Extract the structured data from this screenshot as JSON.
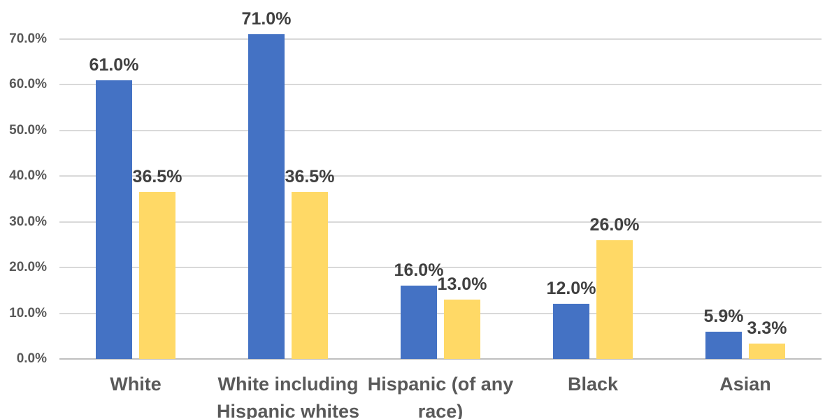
{
  "chart_data": {
    "type": "bar",
    "title": "",
    "xlabel": "",
    "ylabel": "",
    "categories": [
      "White",
      "White including Hispanic whites",
      "Hispanic (of any race)",
      "Black",
      "Asian"
    ],
    "series": [
      {
        "name": "blue",
        "color": "#4472C4",
        "values": [
          61.0,
          71.0,
          16.0,
          12.0,
          5.9
        ],
        "labels": [
          "61.0%",
          "71.0%",
          "16.0%",
          "12.0%",
          "5.9%"
        ]
      },
      {
        "name": "yellow",
        "color": "#FFD966",
        "values": [
          36.5,
          36.5,
          13.0,
          26.0,
          3.3
        ],
        "labels": [
          "36.5%",
          "36.5%",
          "13.0%",
          "26.0%",
          "3.3%"
        ]
      }
    ],
    "ylim": [
      0,
      70
    ],
    "ytick_step": 10,
    "ytick_labels": [
      "0.0%",
      "10.0%",
      "20.0%",
      "30.0%",
      "40.0%",
      "50.0%",
      "60.0%",
      "70.0%"
    ],
    "grid": true,
    "legend_position": "none",
    "colors": {
      "gridline": "#D9D9D9",
      "baseline": "#BFBFBF",
      "axis_text": "#595959",
      "data_label_text": "#404040",
      "category_text": "#595959",
      "background": "#FFFFFF"
    }
  }
}
